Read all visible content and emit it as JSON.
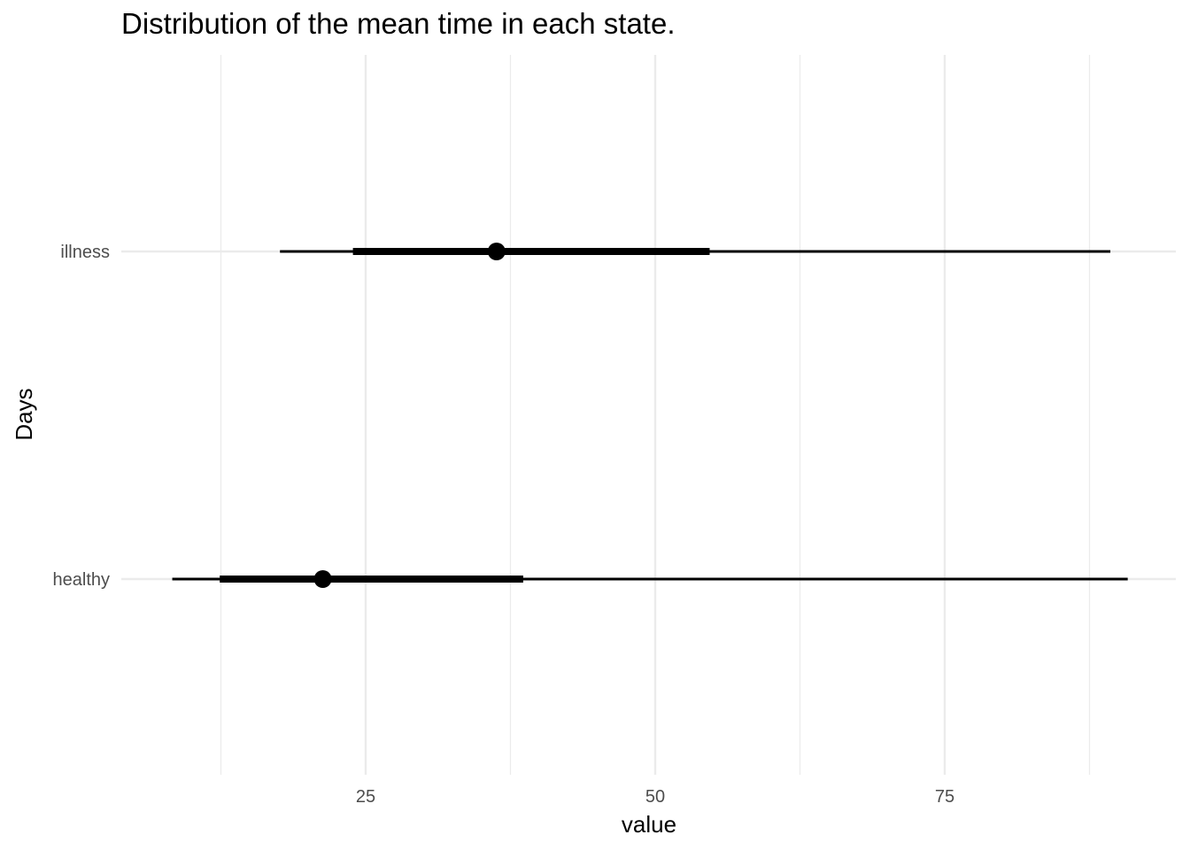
{
  "chart_data": {
    "type": "pointrange",
    "title": "Distribution of the mean time in each state.",
    "xlabel": "value",
    "ylabel": "Days",
    "categories": [
      "healthy",
      "illness"
    ],
    "x_ticks": [
      25,
      50,
      75
    ],
    "x_minor_ticks": [
      12.5,
      37.5,
      62.5,
      87.5
    ],
    "xlim": [
      3.5,
      94.5
    ],
    "grid": true,
    "series": [
      {
        "category": "illness",
        "point": 36.3,
        "inner": [
          23.9,
          54.7
        ],
        "outer": [
          17.6,
          89.3
        ]
      },
      {
        "category": "healthy",
        "point": 21.3,
        "inner": [
          12.4,
          38.6
        ],
        "outer": [
          8.3,
          90.8
        ]
      }
    ],
    "colors": {
      "marks": "#000000",
      "grid": "#ebebeb",
      "tick_text": "#4d4d4d"
    }
  }
}
